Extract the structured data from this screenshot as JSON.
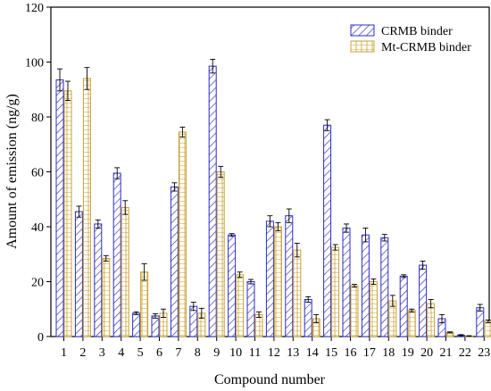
{
  "chart_data": {
    "type": "bar",
    "xlabel": "Compound number",
    "ylabel": "Amount of emission (ng/g)",
    "ylim": [
      0,
      120
    ],
    "yticks": [
      0,
      20,
      40,
      60,
      80,
      100,
      120
    ],
    "grid": false,
    "legend_position": "top-right",
    "categories": [
      "1",
      "2",
      "3",
      "4",
      "5",
      "6",
      "7",
      "8",
      "9",
      "10",
      "11",
      "12",
      "13",
      "14",
      "15",
      "16",
      "17",
      "18",
      "19",
      "20",
      "21",
      "22",
      "23"
    ],
    "series": [
      {
        "name": "CRMB binder",
        "color": "#2b2bc8",
        "pattern": "diagonal-hatch",
        "values": [
          93.5,
          45.5,
          41,
          59.5,
          8.5,
          7.5,
          54.5,
          11,
          98.5,
          37,
          20,
          42,
          44,
          13.5,
          77,
          39.5,
          37,
          36,
          22,
          26,
          6.5,
          0.5,
          10.5
        ],
        "errors": [
          4,
          2,
          1.5,
          2,
          0.5,
          0.8,
          1.5,
          1.5,
          2.5,
          0.5,
          0.8,
          2,
          2.5,
          1,
          2,
          1.5,
          2.5,
          1.2,
          0.5,
          1.5,
          1.5,
          0.2,
          1.2
        ]
      },
      {
        "name": "Mt-CRMB binder",
        "color": "#c8a030",
        "pattern": "grid-hatch",
        "values": [
          89.5,
          94,
          28.5,
          47,
          23.5,
          8.5,
          74.5,
          8.5,
          60,
          22.5,
          8,
          40,
          31.5,
          6.5,
          32.5,
          18.5,
          20,
          13,
          9.5,
          12,
          1.5,
          0.2,
          5.5
        ],
        "errors": [
          3.5,
          4,
          1,
          2.5,
          3,
          1.5,
          1.8,
          1.8,
          2,
          1,
          1,
          1.5,
          2.5,
          1.5,
          1,
          0.5,
          1,
          2,
          0.5,
          1.5,
          0.2,
          0.1,
          0.5
        ]
      }
    ]
  }
}
